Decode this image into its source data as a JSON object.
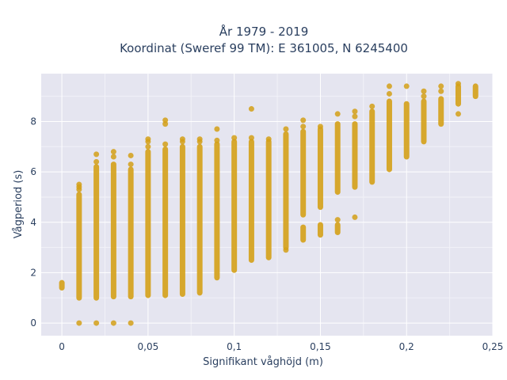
{
  "chart_data": {
    "type": "scatter",
    "title_line1": "År 1979 - 2019",
    "title_line2": "Koordinat (Sweref 99 TM): E 361005, N 6245400",
    "xlabel": "Signifikant våghöjd (m)",
    "ylabel": "Vågperiod (s)",
    "xlim": [
      -0.012,
      0.25
    ],
    "ylim": [
      -0.5,
      9.9
    ],
    "xticks": [
      0,
      0.05,
      0.1,
      0.15,
      0.2,
      0.25
    ],
    "xtick_labels": [
      "0",
      "0,05",
      "0,1",
      "0,15",
      "0,2",
      "0,25"
    ],
    "yticks": [
      0,
      2,
      4,
      6,
      8
    ],
    "ytick_labels": [
      "0",
      "2",
      "4",
      "6",
      "8"
    ],
    "grid": true,
    "marker_color": "#d4a017",
    "plot_bg": "#e5e5f0",
    "columns": [
      {
        "x": 0.0,
        "segments": [
          [
            1.4,
            1.6
          ]
        ],
        "points": []
      },
      {
        "x": 0.01,
        "segments": [
          [
            1.0,
            5.1
          ]
        ],
        "points": [
          5.3,
          5.4,
          5.5,
          0
        ]
      },
      {
        "x": 0.02,
        "segments": [
          [
            1.0,
            6.2
          ]
        ],
        "points": [
          6.4,
          6.7,
          0
        ]
      },
      {
        "x": 0.03,
        "segments": [
          [
            1.05,
            6.3
          ]
        ],
        "points": [
          6.6,
          6.8,
          0
        ]
      },
      {
        "x": 0.04,
        "segments": [
          [
            1.05,
            6.1
          ]
        ],
        "points": [
          6.3,
          6.65,
          0
        ]
      },
      {
        "x": 0.05,
        "segments": [
          [
            1.1,
            6.8
          ]
        ],
        "points": [
          7.0,
          7.2,
          7.3
        ]
      },
      {
        "x": 0.06,
        "segments": [
          [
            1.1,
            6.9
          ]
        ],
        "points": [
          7.1,
          7.9,
          8.05
        ]
      },
      {
        "x": 0.07,
        "segments": [
          [
            1.15,
            7.0
          ]
        ],
        "points": [
          7.2,
          7.3
        ]
      },
      {
        "x": 0.08,
        "segments": [
          [
            1.2,
            7.0
          ]
        ],
        "points": [
          7.2,
          7.3
        ]
      },
      {
        "x": 0.09,
        "segments": [
          [
            1.8,
            7.1
          ]
        ],
        "points": [
          7.25,
          7.7
        ]
      },
      {
        "x": 0.1,
        "segments": [
          [
            2.1,
            7.2
          ]
        ],
        "points": [
          7.35
        ]
      },
      {
        "x": 0.11,
        "segments": [
          [
            2.5,
            7.2
          ]
        ],
        "points": [
          7.35,
          8.5
        ]
      },
      {
        "x": 0.12,
        "segments": [
          [
            2.6,
            7.2
          ]
        ],
        "points": [
          7.3
        ]
      },
      {
        "x": 0.13,
        "segments": [
          [
            3.0,
            7.5
          ]
        ],
        "points": [
          2.9,
          7.7
        ]
      },
      {
        "x": 0.14,
        "segments": [
          [
            3.3,
            3.8
          ],
          [
            4.3,
            7.6
          ]
        ],
        "points": [
          7.8,
          8.05
        ]
      },
      {
        "x": 0.15,
        "segments": [
          [
            3.5,
            3.9
          ],
          [
            4.6,
            7.7
          ]
        ],
        "points": [
          7.8
        ]
      },
      {
        "x": 0.16,
        "segments": [
          [
            3.6,
            3.9
          ],
          [
            5.2,
            7.9
          ]
        ],
        "points": [
          4.1,
          8.3
        ]
      },
      {
        "x": 0.17,
        "segments": [
          [
            5.4,
            7.9
          ]
        ],
        "points": [
          4.2,
          8.2,
          8.4
        ]
      },
      {
        "x": 0.18,
        "segments": [
          [
            5.6,
            8.4
          ]
        ],
        "points": [
          8.6
        ]
      },
      {
        "x": 0.19,
        "segments": [
          [
            6.1,
            8.8
          ]
        ],
        "points": [
          9.1,
          9.4
        ]
      },
      {
        "x": 0.2,
        "segments": [
          [
            6.6,
            8.7
          ]
        ],
        "points": [
          9.4
        ]
      },
      {
        "x": 0.21,
        "segments": [
          [
            7.2,
            8.8
          ]
        ],
        "points": [
          9.0,
          9.2
        ]
      },
      {
        "x": 0.22,
        "segments": [
          [
            7.9,
            8.9
          ]
        ],
        "points": [
          9.2,
          9.4
        ]
      },
      {
        "x": 0.23,
        "segments": [
          [
            8.7,
            9.4
          ]
        ],
        "points": [
          8.3,
          9.5
        ]
      },
      {
        "x": 0.24,
        "segments": [
          [
            9.0,
            9.4
          ]
        ],
        "points": []
      }
    ]
  }
}
